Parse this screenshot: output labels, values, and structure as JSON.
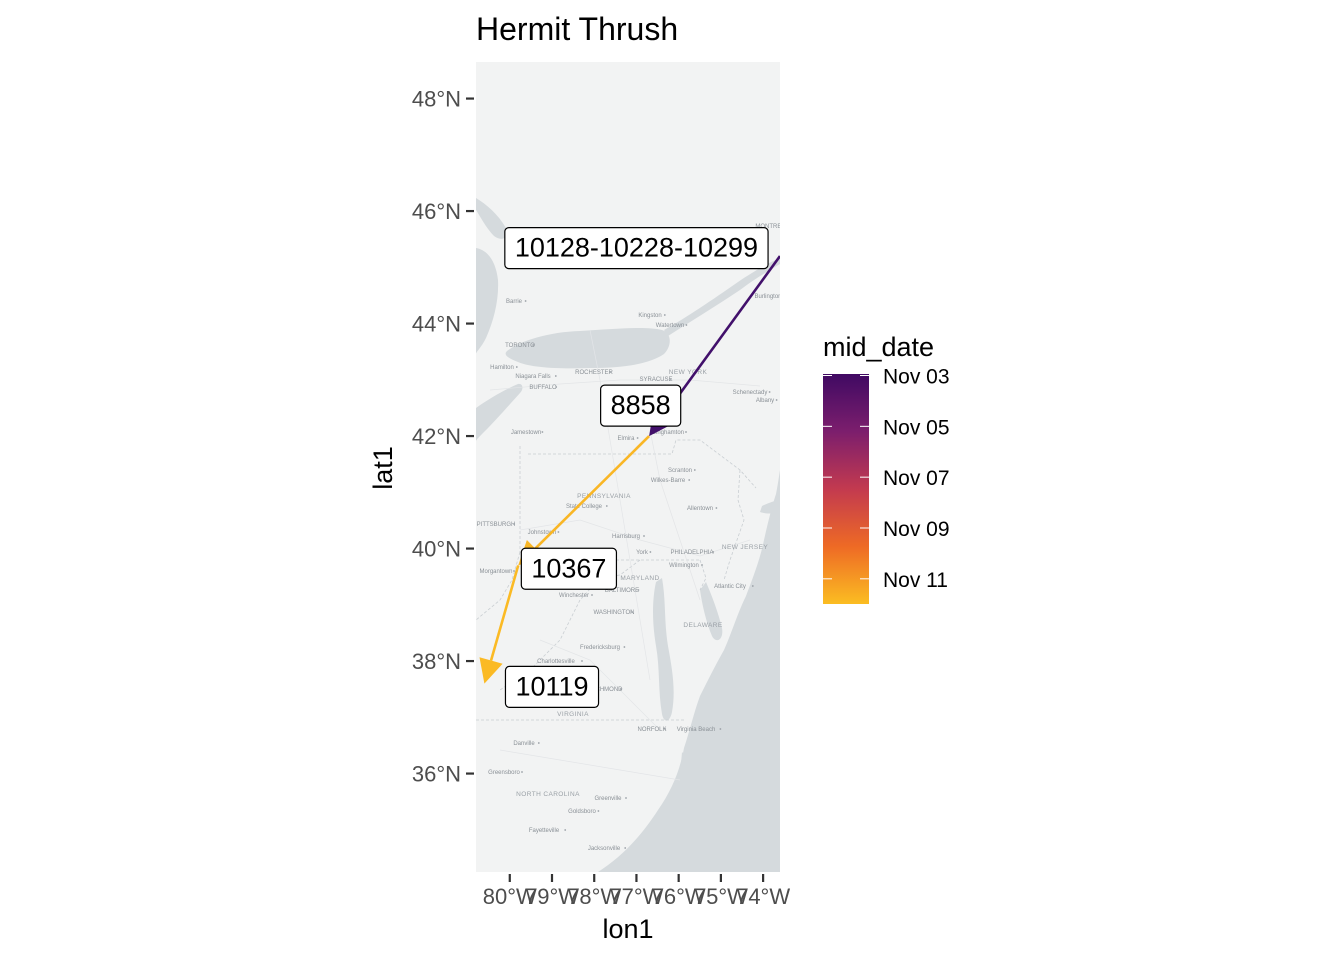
{
  "title": "Hermit Thrush",
  "axes": {
    "x_title": "lon1",
    "y_title": "lat1",
    "x_ticks": [
      {
        "value": -80,
        "label": "80°W"
      },
      {
        "value": -79,
        "label": "79°W"
      },
      {
        "value": -78,
        "label": "78°W"
      },
      {
        "value": -77,
        "label": "77°W"
      },
      {
        "value": -76,
        "label": "76°W"
      },
      {
        "value": -75,
        "label": "75°W"
      },
      {
        "value": -74,
        "label": "74°W"
      }
    ],
    "y_ticks": [
      {
        "value": 36,
        "label": "36°N"
      },
      {
        "value": 38,
        "label": "38°N"
      },
      {
        "value": 40,
        "label": "40°N"
      },
      {
        "value": 42,
        "label": "42°N"
      },
      {
        "value": 44,
        "label": "44°N"
      },
      {
        "value": 46,
        "label": "46°N"
      },
      {
        "value": 48,
        "label": "48°N"
      }
    ]
  },
  "legend": {
    "title": "mid_date",
    "labels": [
      "Nov 03",
      "Nov 05",
      "Nov 07",
      "Nov 09",
      "Nov 11"
    ]
  },
  "basemap": {
    "state_labels": [
      "NEW YORK",
      "PENNSYLVANIA",
      "MARYLAND",
      "NEW JERSEY",
      "DELAWARE",
      "VIRGINIA",
      "NORTH CAROLINA"
    ],
    "city_labels": [
      "TORONTO",
      "ROCHESTER",
      "SYRACUSE",
      "BUFFALO",
      "Hamilton",
      "Niagara Falls",
      "Binghamton",
      "Scranton",
      "Wilkes-Barre",
      "Albany",
      "Schenectady",
      "State College",
      "Harrisburg",
      "PITTSBURGH",
      "Johnstown",
      "Morgantown",
      "York",
      "PHILADELPHIA",
      "Wilmington",
      "Atlantic City",
      "BALTIMORE",
      "WASHINGTON",
      "Winchester",
      "Fredericksburg",
      "Charlottesville",
      "RICHMOND",
      "NORFOLK",
      "Virginia Beach",
      "Danville",
      "Greensboro",
      "Greenville",
      "Goldsboro",
      "Fayetteville",
      "Jacksonville",
      "Kingston",
      "Watertown",
      "Barrie",
      "Cornwall",
      "Ottawa",
      "MONTREAL",
      "Burlington",
      "Jamestown",
      "Allentown",
      "Elmira",
      "Ithaca"
    ]
  },
  "chart_data": {
    "type": "map",
    "title": "Hermit Thrush",
    "xlabel": "lon1",
    "ylabel": "lat1",
    "xlim": [
      -80.8,
      -73.6
    ],
    "ylim": [
      34.25,
      48.65
    ],
    "segments": [
      {
        "label": "10128-10228-10299",
        "lon1": -73.6,
        "lat1": 45.2,
        "lon2": -76.7,
        "lat2": 42.0,
        "mid_date": "Nov 03",
        "color": "#42106b"
      },
      {
        "label": "8858",
        "lon1": -76.7,
        "lat1": 42.0,
        "lon2": -79.8,
        "lat2": 39.7,
        "mid_date": "Nov 11",
        "color": "#f9b625"
      },
      {
        "label": "10367",
        "lon1": -79.8,
        "lat1": 39.7,
        "lon2": -80.6,
        "lat2": 37.6,
        "mid_date": "Nov 12",
        "color": "#fbba24"
      }
    ],
    "point_labels": [
      {
        "text": "10128-10228-10299",
        "lon": -77.0,
        "lat": 45.35
      },
      {
        "text": "8858",
        "lon": -76.9,
        "lat": 42.55
      },
      {
        "text": "10367",
        "lon": -78.6,
        "lat": 39.65
      },
      {
        "text": "10119",
        "lon": -79.0,
        "lat": 37.55
      }
    ],
    "color_scale": {
      "name": "mid_date",
      "palette": "inferno",
      "low_color": "#430b5f",
      "high_color": "#fcb81e"
    },
    "colors": {
      "land": "#f2f3f3",
      "water": "#d5dadd",
      "panel_border": "#ebebeb"
    }
  }
}
